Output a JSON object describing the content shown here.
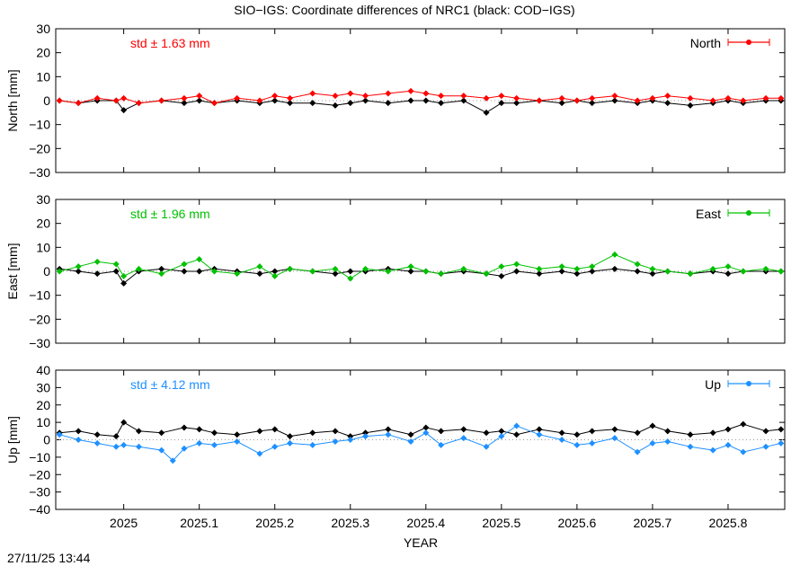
{
  "title": "SIO−IGS: Coordinate differences of NRC1 (black: COD−IGS)",
  "timestamp": "27/11/25 13:44",
  "xlabel": "YEAR",
  "x_ticks": [
    "2025",
    "2025.1",
    "2025.2",
    "2025.3",
    "2025.4",
    "2025.5",
    "2025.6",
    "2025.7",
    "2025.8"
  ],
  "chart_data": [
    {
      "type": "scatter",
      "ylabel": "North [mm]",
      "legend": "North",
      "std_label": "std ± 1.63 mm",
      "color": "#ff0000",
      "ylim": [
        -30,
        30
      ],
      "y_ticks": [
        "30",
        "20",
        "10",
        "0",
        "−10",
        "−20",
        "−30"
      ],
      "xlim": [
        2024.91,
        2025.875
      ],
      "series": [
        {
          "values_note": "SIO-IGS",
          "x": [
            2024.915,
            2024.94,
            2024.965,
            2024.99,
            2025.0,
            2025.02,
            2025.05,
            2025.08,
            2025.1,
            2025.12,
            2025.15,
            2025.18,
            2025.2,
            2025.22,
            2025.25,
            2025.28,
            2025.3,
            2025.32,
            2025.35,
            2025.38,
            2025.4,
            2025.42,
            2025.45,
            2025.48,
            2025.5,
            2025.52,
            2025.55,
            2025.58,
            2025.6,
            2025.62,
            2025.65,
            2025.68,
            2025.7,
            2025.72,
            2025.75,
            2025.78,
            2025.8,
            2025.82,
            2025.85,
            2025.87
          ],
          "y": [
            0,
            -1,
            1,
            0,
            1,
            -1,
            0,
            1,
            2,
            -1,
            1,
            0,
            2,
            1,
            3,
            2,
            3,
            2,
            3,
            4,
            3,
            2,
            2,
            1,
            2,
            1,
            0,
            1,
            0,
            1,
            2,
            0,
            1,
            2,
            1,
            0,
            1,
            0,
            1,
            1
          ]
        },
        {
          "values_note": "COD-IGS",
          "x": [
            2024.915,
            2024.94,
            2024.965,
            2024.99,
            2025.0,
            2025.02,
            2025.05,
            2025.08,
            2025.1,
            2025.12,
            2025.15,
            2025.18,
            2025.2,
            2025.22,
            2025.25,
            2025.28,
            2025.3,
            2025.32,
            2025.35,
            2025.38,
            2025.4,
            2025.42,
            2025.45,
            2025.48,
            2025.5,
            2025.52,
            2025.55,
            2025.58,
            2025.6,
            2025.62,
            2025.65,
            2025.68,
            2025.7,
            2025.72,
            2025.75,
            2025.78,
            2025.8,
            2025.82,
            2025.85,
            2025.87
          ],
          "y": [
            0,
            -1,
            0,
            0,
            -4,
            -1,
            0,
            -1,
            0,
            -1,
            0,
            -1,
            0,
            -1,
            -1,
            -2,
            -1,
            0,
            -1,
            0,
            0,
            -1,
            0,
            -5,
            -1,
            -1,
            0,
            -1,
            0,
            -1,
            0,
            -1,
            0,
            -1,
            -2,
            -1,
            0,
            -1,
            0,
            0
          ]
        }
      ]
    },
    {
      "type": "scatter",
      "ylabel": "East [mm]",
      "legend": "East",
      "std_label": "std ± 1.96 mm",
      "color": "#00c000",
      "ylim": [
        -30,
        30
      ],
      "y_ticks": [
        "30",
        "20",
        "10",
        "0",
        "−10",
        "−20",
        "−30"
      ],
      "xlim": [
        2024.91,
        2025.875
      ],
      "series": [
        {
          "values_note": "SIO-IGS",
          "x": [
            2024.915,
            2024.94,
            2024.965,
            2024.99,
            2025.0,
            2025.02,
            2025.05,
            2025.08,
            2025.1,
            2025.12,
            2025.15,
            2025.18,
            2025.2,
            2025.22,
            2025.25,
            2025.28,
            2025.3,
            2025.32,
            2025.35,
            2025.38,
            2025.4,
            2025.42,
            2025.45,
            2025.48,
            2025.5,
            2025.52,
            2025.55,
            2025.58,
            2025.6,
            2025.62,
            2025.65,
            2025.68,
            2025.7,
            2025.72,
            2025.75,
            2025.78,
            2025.8,
            2025.82,
            2025.85,
            2025.87
          ],
          "y": [
            0,
            2,
            4,
            3,
            -2,
            1,
            -1,
            3,
            5,
            0,
            -1,
            2,
            -2,
            1,
            0,
            1,
            -3,
            1,
            0,
            2,
            0,
            -1,
            1,
            -1,
            2,
            3,
            1,
            2,
            1,
            2,
            7,
            3,
            1,
            0,
            -1,
            1,
            2,
            0,
            1,
            0
          ]
        },
        {
          "values_note": "COD-IGS",
          "x": [
            2024.915,
            2024.94,
            2024.965,
            2024.99,
            2025.0,
            2025.02,
            2025.05,
            2025.08,
            2025.1,
            2025.12,
            2025.15,
            2025.18,
            2025.2,
            2025.22,
            2025.25,
            2025.28,
            2025.3,
            2025.32,
            2025.35,
            2025.38,
            2025.4,
            2025.42,
            2025.45,
            2025.48,
            2025.5,
            2025.52,
            2025.55,
            2025.58,
            2025.6,
            2025.62,
            2025.65,
            2025.68,
            2025.7,
            2025.72,
            2025.75,
            2025.78,
            2025.8,
            2025.82,
            2025.85,
            2025.87
          ],
          "y": [
            1,
            0,
            -1,
            0,
            -5,
            0,
            1,
            0,
            0,
            1,
            0,
            -1,
            0,
            1,
            0,
            -1,
            0,
            0,
            1,
            0,
            0,
            -1,
            0,
            -1,
            -2,
            0,
            -1,
            0,
            -1,
            0,
            1,
            0,
            -1,
            0,
            -1,
            0,
            -1,
            0,
            0,
            0
          ]
        }
      ]
    },
    {
      "type": "scatter",
      "ylabel": "Up [mm]",
      "legend": "Up",
      "std_label": "std ± 4.12 mm",
      "color": "#1e90ff",
      "ylim": [
        -40,
        40
      ],
      "y_ticks": [
        "40",
        "30",
        "20",
        "10",
        "0",
        "−10",
        "−20",
        "−30",
        "−40"
      ],
      "xlim": [
        2024.91,
        2025.875
      ],
      "series": [
        {
          "values_note": "SIO-IGS",
          "x": [
            2024.915,
            2024.94,
            2024.965,
            2024.99,
            2025.0,
            2025.02,
            2025.05,
            2025.065,
            2025.08,
            2025.1,
            2025.12,
            2025.15,
            2025.18,
            2025.2,
            2025.22,
            2025.25,
            2025.28,
            2025.3,
            2025.32,
            2025.35,
            2025.38,
            2025.4,
            2025.42,
            2025.45,
            2025.48,
            2025.5,
            2025.52,
            2025.55,
            2025.58,
            2025.6,
            2025.62,
            2025.65,
            2025.68,
            2025.7,
            2025.72,
            2025.75,
            2025.78,
            2025.8,
            2025.82,
            2025.85,
            2025.87
          ],
          "y": [
            3,
            0,
            -2,
            -4,
            -3,
            -4,
            -6,
            -12,
            -5,
            -2,
            -3,
            -1,
            -8,
            -4,
            -2,
            -3,
            -1,
            0,
            2,
            3,
            -1,
            4,
            -3,
            1,
            -4,
            2,
            8,
            3,
            0,
            -3,
            -2,
            1,
            -7,
            -2,
            -1,
            -4,
            -6,
            -3,
            -7,
            -4,
            -2
          ]
        },
        {
          "values_note": "COD-IGS",
          "x": [
            2024.915,
            2024.94,
            2024.965,
            2024.99,
            2025.0,
            2025.02,
            2025.05,
            2025.08,
            2025.1,
            2025.12,
            2025.15,
            2025.18,
            2025.2,
            2025.22,
            2025.25,
            2025.28,
            2025.3,
            2025.32,
            2025.35,
            2025.38,
            2025.4,
            2025.42,
            2025.45,
            2025.48,
            2025.5,
            2025.52,
            2025.55,
            2025.58,
            2025.6,
            2025.62,
            2025.65,
            2025.68,
            2025.7,
            2025.72,
            2025.75,
            2025.78,
            2025.8,
            2025.82,
            2025.85,
            2025.87
          ],
          "y": [
            4,
            5,
            3,
            2,
            10,
            5,
            4,
            7,
            6,
            4,
            3,
            5,
            6,
            2,
            4,
            5,
            2,
            4,
            6,
            3,
            7,
            5,
            6,
            4,
            5,
            3,
            6,
            4,
            3,
            5,
            6,
            4,
            8,
            5,
            3,
            4,
            6,
            9,
            5,
            6
          ]
        }
      ]
    }
  ]
}
